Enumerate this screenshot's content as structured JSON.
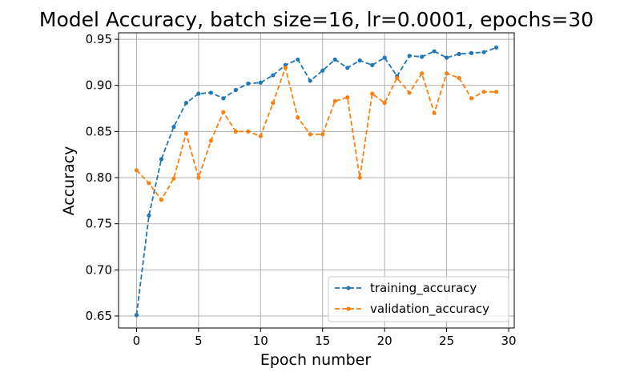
{
  "chart_data": {
    "type": "line",
    "title": "Model Accuracy, batch size=16, lr=0.0001, epochs=30",
    "xlabel": "Epoch number",
    "ylabel": "Accuracy",
    "xlim": [
      -1.45,
      30.45
    ],
    "ylim": [
      0.637,
      0.957
    ],
    "xticks": [
      0,
      5,
      10,
      15,
      20,
      25,
      30
    ],
    "xtick_labels": [
      "0",
      "5",
      "10",
      "15",
      "20",
      "25",
      "30"
    ],
    "yticks": [
      0.65,
      0.7,
      0.75,
      0.8,
      0.85,
      0.9,
      0.95
    ],
    "ytick_labels": [
      "0.65",
      "0.70",
      "0.75",
      "0.80",
      "0.85",
      "0.90",
      "0.95"
    ],
    "grid": true,
    "legend_position": "lower-right",
    "x": [
      0,
      1,
      2,
      3,
      4,
      5,
      6,
      7,
      8,
      9,
      10,
      11,
      12,
      13,
      14,
      15,
      16,
      17,
      18,
      19,
      20,
      21,
      22,
      23,
      24,
      25,
      26,
      27,
      28,
      29
    ],
    "series": [
      {
        "name": "training_accuracy",
        "color": "#1f77b4",
        "linestyle": "dashed",
        "marker": "dot",
        "values": [
          0.651,
          0.759,
          0.82,
          0.855,
          0.881,
          0.891,
          0.892,
          0.886,
          0.895,
          0.902,
          0.903,
          0.911,
          0.922,
          0.928,
          0.905,
          0.916,
          0.928,
          0.919,
          0.927,
          0.922,
          0.93,
          0.91,
          0.932,
          0.931,
          0.937,
          0.93,
          0.934,
          0.935,
          0.936,
          0.941
        ]
      },
      {
        "name": "validation_accuracy",
        "color": "#ff7f0e",
        "linestyle": "dashed",
        "marker": "dot",
        "values": [
          0.808,
          0.794,
          0.776,
          0.799,
          0.848,
          0.8,
          0.84,
          0.871,
          0.85,
          0.85,
          0.845,
          0.881,
          0.919,
          0.865,
          0.847,
          0.847,
          0.883,
          0.887,
          0.8,
          0.891,
          0.881,
          0.908,
          0.892,
          0.913,
          0.87,
          0.913,
          0.908,
          0.886,
          0.893,
          0.893
        ]
      }
    ]
  }
}
